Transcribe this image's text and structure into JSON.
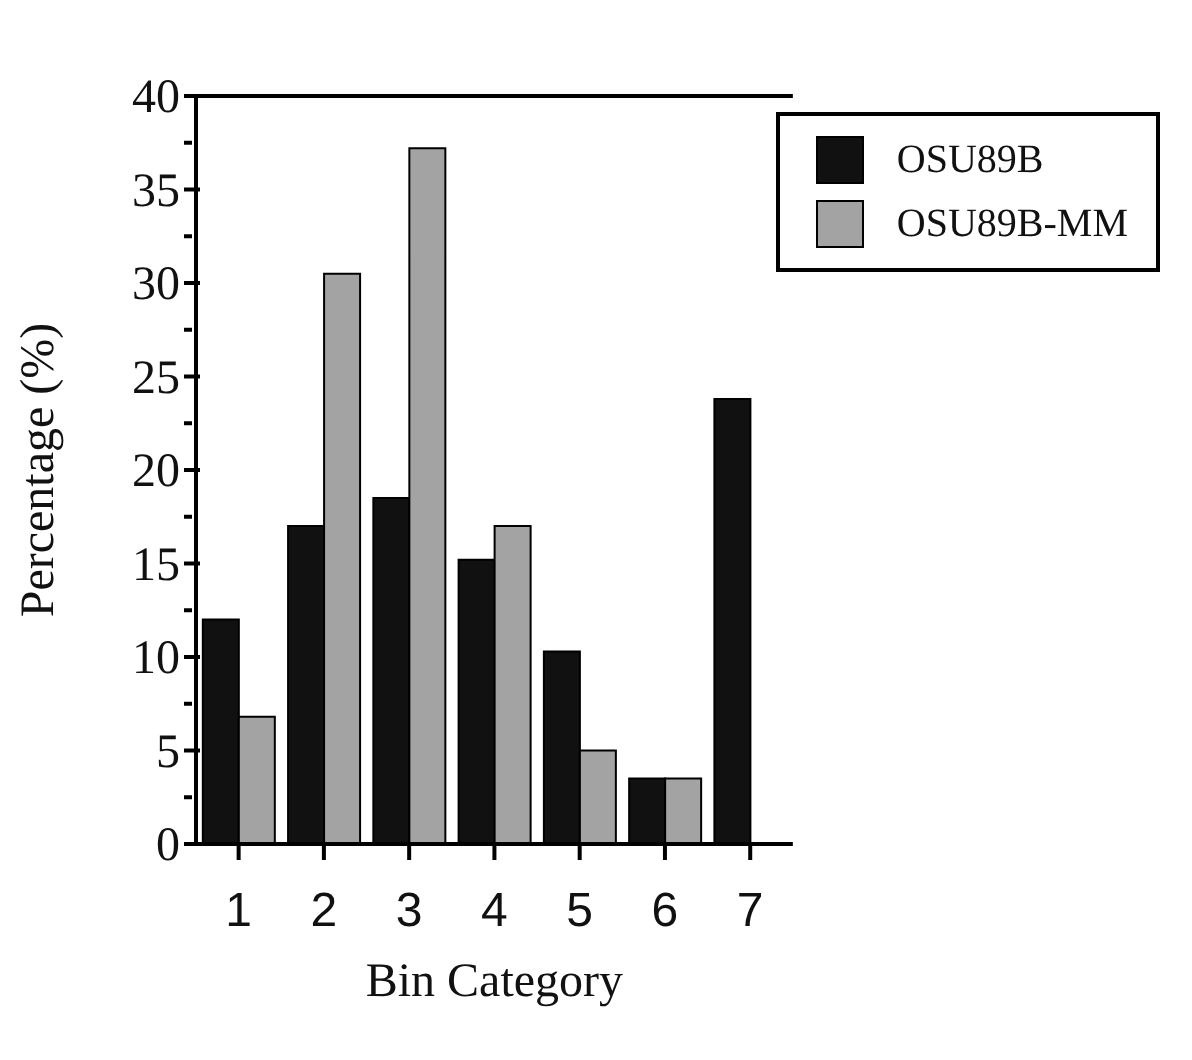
{
  "chart_data": {
    "type": "bar",
    "xlabel": "Bin Category",
    "ylabel": "Percentage (%)",
    "categories": [
      "1",
      "2",
      "3",
      "4",
      "5",
      "6",
      "7"
    ],
    "series": [
      {
        "name": "OSU89B",
        "color": "#111111",
        "values": [
          12,
          17,
          18.5,
          15.2,
          10.3,
          3.5,
          23.8
        ]
      },
      {
        "name": "OSU89B-MM",
        "color": "#a3a3a3",
        "values": [
          6.8,
          30.5,
          37.2,
          17,
          5,
          3.5,
          null
        ]
      }
    ],
    "ylim": [
      0,
      40
    ],
    "yticks": [
      0,
      {
        "value": 2.5,
        "label": null
      },
      5,
      {
        "value": 7.5,
        "label": null
      },
      10,
      {
        "value": 12.5,
        "label": null
      },
      15,
      {
        "value": 17.5,
        "label": null
      },
      20,
      {
        "value": 22.5,
        "label": null
      },
      25,
      {
        "value": 27.5,
        "label": null
      },
      30,
      {
        "value": 32.5,
        "label": null
      },
      35,
      {
        "value": 37.5,
        "label": null
      },
      40
    ],
    "grid": false,
    "legend": "top right"
  }
}
